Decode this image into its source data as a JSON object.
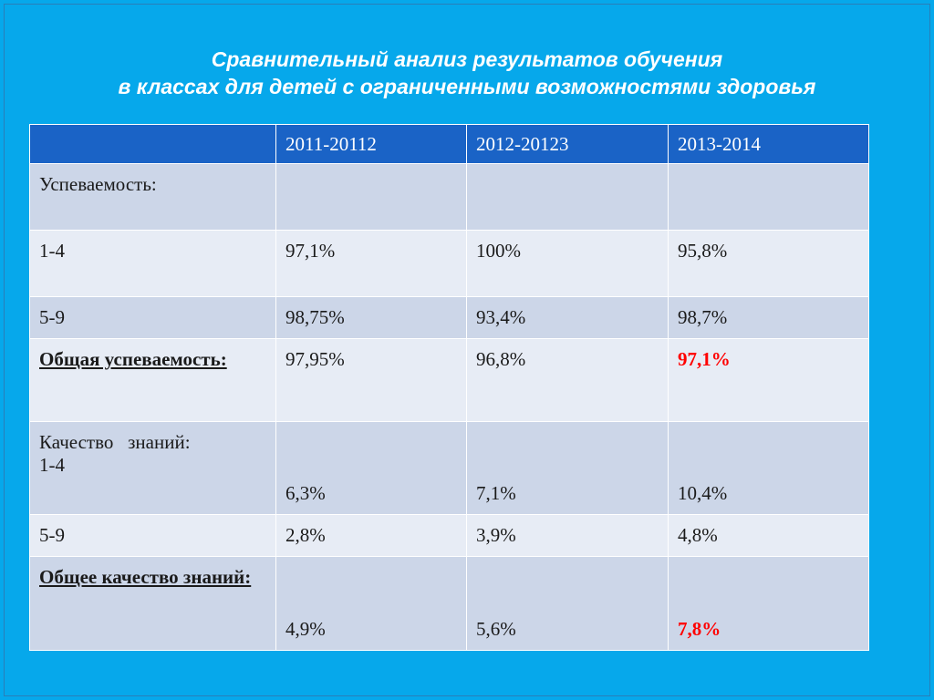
{
  "title": {
    "line1": "Сравнительный анализ результатов обучения",
    "line2": "в классах  для детей с ограниченными возможностями здоровья"
  },
  "table": {
    "headers": [
      "",
      "2011-20112",
      "2012-20123",
      "2013-2014"
    ],
    "rows": [
      {
        "label": "Успеваемость:",
        "values": [
          "",
          "",
          ""
        ]
      },
      {
        "label": "1-4",
        "values": [
          "97,1%",
          "100%",
          "95,8%"
        ]
      },
      {
        "label": "5-9",
        "values": [
          "98,75%",
          "93,4%",
          "98,7%"
        ]
      },
      {
        "label": "Общая успеваемость:",
        "values": [
          "97,95%",
          "96,8%",
          "97,1%"
        ]
      },
      {
        "label_line1": "Качество   знаний:",
        "label_line2": "1-4",
        "values": [
          "6,3%",
          "7,1%",
          "10,4%"
        ]
      },
      {
        "label": "5-9",
        "values": [
          "2,8%",
          "3,9%",
          "4,8%"
        ]
      },
      {
        "label": "Общее качество знаний:",
        "values": [
          "4,9%",
          "5,6%",
          "7,8%"
        ]
      }
    ]
  },
  "colors": {
    "background": "#06a8eb",
    "header": "#1a63c6",
    "row_dark": "#ccd6e8",
    "row_light": "#e7ecf5",
    "highlight": "#ff0000"
  }
}
